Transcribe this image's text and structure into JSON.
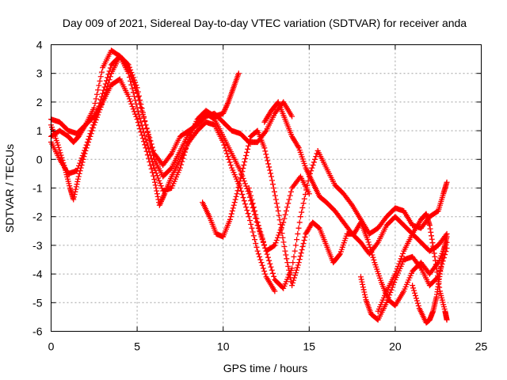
{
  "chart_data": {
    "type": "scatter",
    "title": "Day 009 of 2021, Sidereal Day-to-day VTEC variation (SDTVAR) for receiver anda",
    "xlabel": "GPS time / hours",
    "ylabel": "SDTVAR / TECUs",
    "xlim": [
      0,
      25
    ],
    "ylim": [
      -6,
      4
    ],
    "xticks": [
      0,
      5,
      10,
      15,
      20,
      25
    ],
    "yticks": [
      -6,
      -5,
      -4,
      -3,
      -2,
      -1,
      0,
      1,
      2,
      3,
      4
    ],
    "grid": true,
    "marker": "+",
    "color": "#ff0000",
    "series": [
      {
        "name": "s1",
        "x": [
          0,
          0.5,
          1.0,
          1.3,
          1.6,
          2.0,
          2.5,
          3.0,
          3.5,
          4.0,
          4.5,
          5.0,
          5.5,
          6.0,
          6.5,
          7.0,
          7.5,
          8.0,
          8.5,
          9.0,
          9.5,
          10.0,
          10.5,
          11.0,
          11.5,
          12.0,
          12.5,
          13.0,
          13.5,
          14.0
        ],
        "y": [
          0.8,
          1.0,
          0.8,
          0.6,
          0.8,
          1.2,
          1.8,
          3.2,
          3.8,
          3.6,
          3.3,
          2.5,
          1.2,
          0.2,
          -0.2,
          0.2,
          0.8,
          1.0,
          1.2,
          1.5,
          1.6,
          1.3,
          1.0,
          0.9,
          0.6,
          0.6,
          1.0,
          1.6,
          2.0,
          1.5
        ]
      },
      {
        "name": "s2",
        "x": [
          0,
          0.4,
          0.8,
          1.1,
          1.3,
          1.6,
          2.0,
          2.5,
          3.0,
          3.5,
          4.0,
          4.5,
          5.0,
          5.5,
          6.0,
          6.5,
          7.0,
          7.5,
          8.0,
          8.5,
          9.0,
          9.5,
          10.0,
          10.5,
          11.0,
          11.5,
          12.0,
          12.5,
          13.0,
          13.5,
          14.0,
          14.5,
          15.0
        ],
        "y": [
          1.2,
          0.5,
          -0.3,
          -1.0,
          -1.4,
          -0.6,
          0.3,
          1.2,
          2.0,
          3.0,
          3.6,
          3.2,
          2.3,
          1.2,
          0.0,
          -0.6,
          -0.3,
          0.3,
          0.9,
          1.3,
          1.6,
          1.4,
          0.8,
          0.2,
          -0.4,
          -1.2,
          -2.3,
          -3.2,
          -3.0,
          -2.2,
          -1.0,
          -0.6,
          -1.2
        ]
      },
      {
        "name": "s3",
        "x": [
          0,
          0.5,
          1.0,
          1.5,
          2.0,
          2.5,
          3.0,
          3.5,
          4.0,
          4.5,
          5.0,
          5.5,
          6.0,
          6.3,
          6.6,
          7.0,
          7.5,
          8.0,
          8.5,
          9.0,
          9.5,
          10.0,
          10.5,
          11.0,
          11.5,
          12.0,
          12.5,
          13.0
        ],
        "y": [
          1.4,
          1.3,
          1.0,
          0.9,
          1.2,
          1.5,
          2.0,
          2.6,
          2.8,
          2.2,
          1.4,
          0.4,
          -0.7,
          -1.6,
          -1.2,
          -0.6,
          0.0,
          0.6,
          1.0,
          1.3,
          1.2,
          0.6,
          -0.3,
          -1.0,
          -2.0,
          -3.2,
          -4.1,
          -4.6
        ]
      },
      {
        "name": "s4",
        "x": [
          0,
          0.5,
          1.0,
          1.5,
          2.0,
          2.5,
          3.0,
          3.5,
          4.0,
          4.5,
          5.0,
          5.5,
          6.0,
          6.5,
          7.0,
          7.5,
          8.0,
          8.5,
          9.0,
          9.5,
          10.0,
          10.3,
          10.6,
          10.9
        ],
        "y": [
          0.6,
          0.0,
          -0.5,
          -0.4,
          0.4,
          1.3,
          2.3,
          3.3,
          3.6,
          3.0,
          1.8,
          0.7,
          -0.3,
          -1.1,
          -1.0,
          -0.3,
          0.7,
          1.4,
          1.7,
          1.5,
          1.6,
          2.0,
          2.5,
          3.0
        ]
      },
      {
        "name": "s5",
        "x": [
          8.8,
          9.2,
          9.6,
          10.0,
          10.4,
          10.8,
          11.2,
          11.6,
          12.0,
          12.4,
          12.8,
          13.2,
          13.6,
          14.0,
          14.4,
          14.8,
          15.2,
          15.6,
          16.0,
          16.4,
          16.8,
          17.2,
          17.6,
          18.0,
          18.4,
          18.8,
          19.2,
          19.6,
          20.0,
          20.5,
          21.0,
          21.5,
          22.0,
          22.5,
          23.0
        ],
        "y": [
          -1.5,
          -2.0,
          -2.6,
          -2.7,
          -2.1,
          -1.2,
          -0.2,
          0.8,
          1.0,
          0.4,
          -0.6,
          -1.8,
          -3.2,
          -4.4,
          -3.6,
          -2.6,
          -2.2,
          -2.4,
          -3.0,
          -3.6,
          -3.3,
          -2.6,
          -2.6,
          -2.2,
          -2.8,
          -3.6,
          -4.3,
          -4.9,
          -5.1,
          -4.6,
          -3.9,
          -3.6,
          -4.0,
          -3.6,
          -2.9
        ]
      },
      {
        "name": "s6",
        "x": [
          11.5,
          12.0,
          12.5,
          13.0,
          13.5,
          14.0,
          14.5,
          15.0,
          15.5,
          16.0,
          16.5,
          17.0,
          17.5,
          18.0,
          18.5,
          19.0,
          19.5,
          20.0,
          20.5,
          21.0,
          21.5,
          22.0,
          22.5,
          22.8,
          23.0
        ],
        "y": [
          -1.0,
          -2.2,
          -3.2,
          -4.2,
          -4.5,
          -3.8,
          -2.0,
          -0.6,
          0.3,
          -0.3,
          -0.9,
          -1.2,
          -1.6,
          -2.1,
          -2.6,
          -2.4,
          -2.0,
          -1.7,
          -1.8,
          -2.3,
          -2.4,
          -2.0,
          -1.8,
          -1.2,
          -0.8
        ]
      },
      {
        "name": "s7",
        "x": [
          12.4,
          12.8,
          13.2,
          13.6,
          14.0,
          14.4,
          14.8,
          15.2,
          15.6,
          16.0,
          16.5,
          17.0,
          17.5,
          18.0,
          18.5,
          19.0,
          19.5,
          20.0,
          20.5,
          21.0,
          21.5,
          22.0,
          22.5,
          23.0
        ],
        "y": [
          1.3,
          1.7,
          2.0,
          1.4,
          0.8,
          0.4,
          -0.3,
          -0.8,
          -1.3,
          -1.5,
          -1.8,
          -2.2,
          -2.6,
          -2.9,
          -3.3,
          -2.9,
          -2.3,
          -2.0,
          -2.3,
          -2.6,
          -2.9,
          -3.2,
          -3.0,
          -2.6
        ]
      },
      {
        "name": "s8",
        "x": [
          18.0,
          18.3,
          18.6,
          19.0,
          19.5,
          20.0,
          20.5,
          21.0,
          21.5,
          22.0,
          22.5,
          23.0
        ],
        "y": [
          -4.1,
          -4.9,
          -5.4,
          -5.6,
          -5.0,
          -4.2,
          -3.5,
          -3.4,
          -3.8,
          -4.4,
          -4.1,
          -3.1
        ]
      },
      {
        "name": "s9",
        "x": [
          19.0,
          19.5,
          20.0,
          20.5,
          21.0,
          21.5,
          21.8,
          22.0,
          22.3,
          22.6,
          22.9,
          23.0
        ],
        "y": [
          -5.3,
          -4.6,
          -4.0,
          -3.2,
          -2.6,
          -2.1,
          -1.9,
          -2.3,
          -3.4,
          -4.6,
          -5.3,
          -5.6
        ]
      },
      {
        "name": "s10",
        "x": [
          21.0,
          21.4,
          21.8,
          22.0,
          22.2,
          22.4,
          22.6,
          22.8,
          23.0
        ],
        "y": [
          -4.4,
          -5.2,
          -5.7,
          -5.6,
          -5.3,
          -4.8,
          -4.0,
          -3.2,
          -2.7
        ]
      }
    ]
  }
}
